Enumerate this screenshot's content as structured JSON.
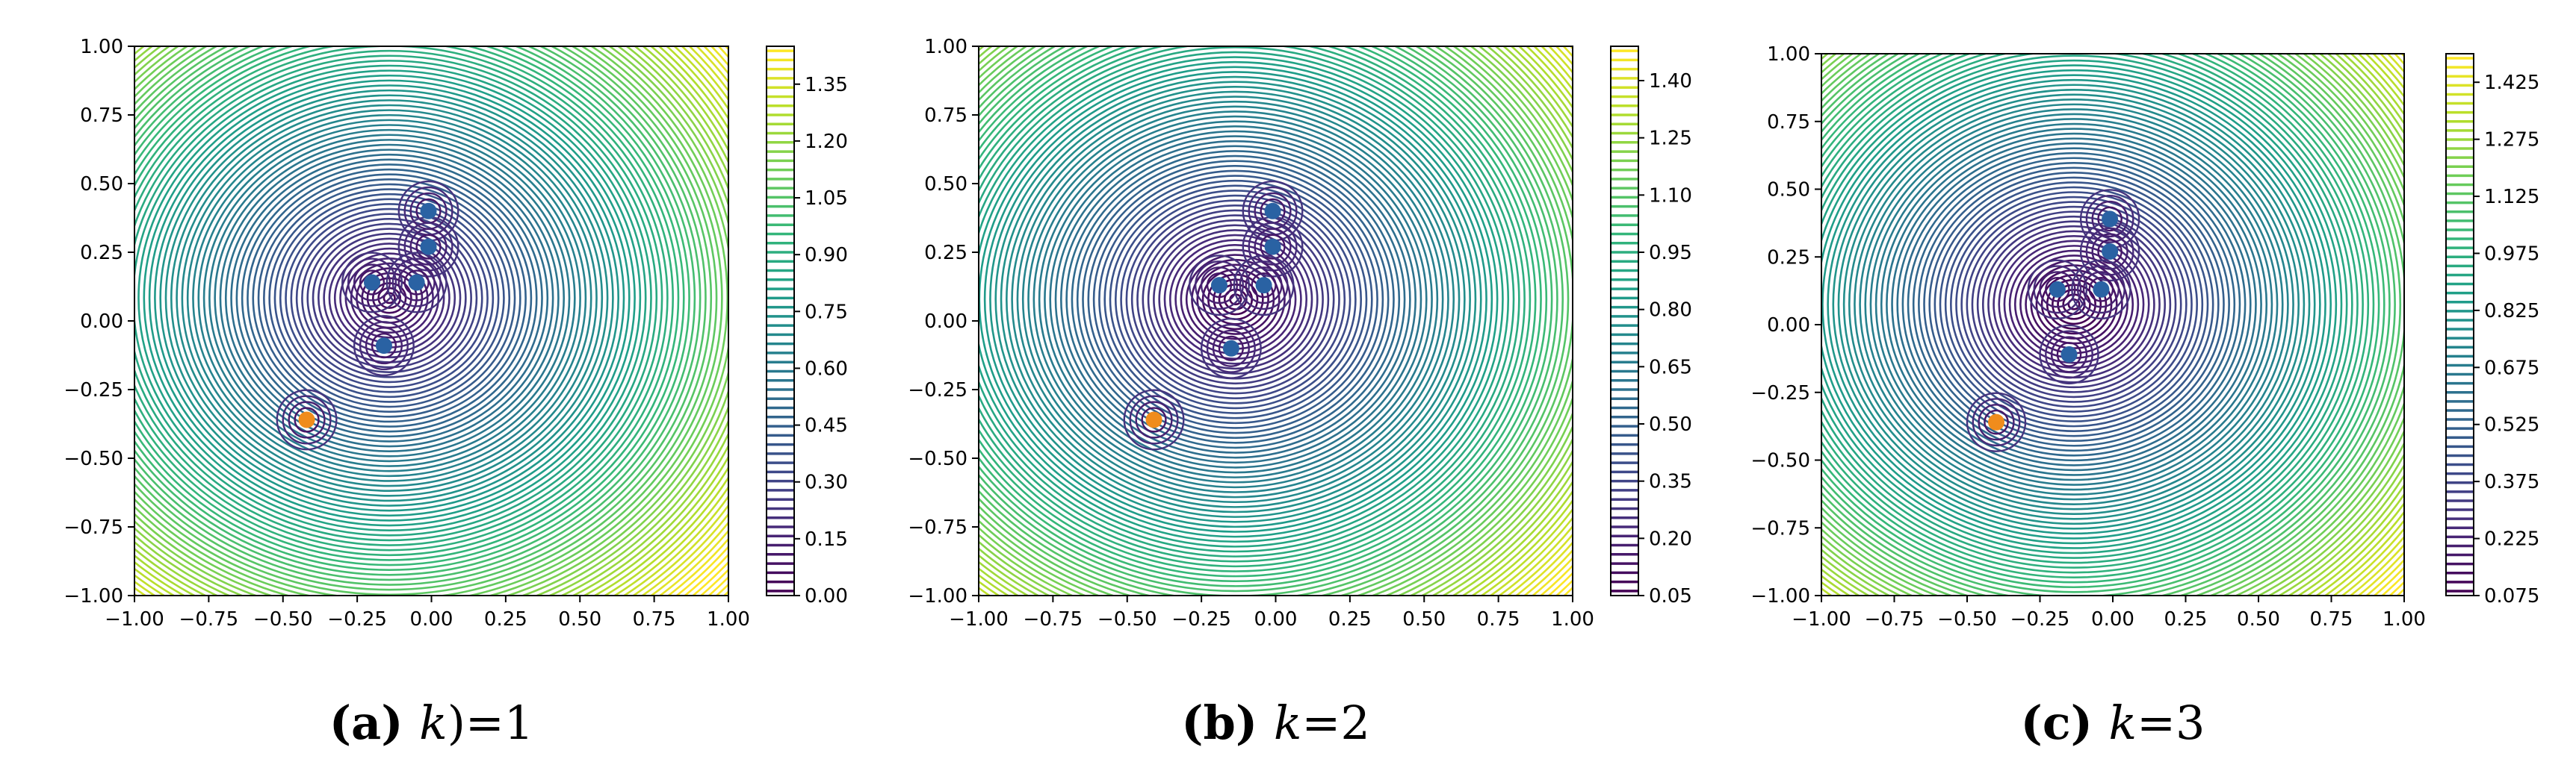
{
  "chart_data": [
    {
      "type": "contour",
      "xlim": [
        -1.0,
        1.0
      ],
      "ylim": [
        -1.0,
        1.0
      ],
      "xticks": [
        "−1.00",
        "−0.75",
        "−0.50",
        "−0.25",
        "0.00",
        "0.25",
        "0.50",
        "0.75",
        "1.00"
      ],
      "yticks": [
        "−1.00",
        "−0.75",
        "−0.50",
        "−0.25",
        "0.00",
        "0.25",
        "0.50",
        "0.75",
        "1.00"
      ],
      "colorbar": {
        "min": 0.0,
        "max": 1.45,
        "ticks": [
          "0.00",
          "0.15",
          "0.30",
          "0.45",
          "0.60",
          "0.75",
          "0.90",
          "1.05",
          "1.20",
          "1.35"
        ]
      },
      "blue_points": [
        [
          -0.01,
          0.4
        ],
        [
          -0.01,
          0.27
        ],
        [
          -0.2,
          0.14
        ],
        [
          -0.05,
          0.14
        ],
        [
          -0.16,
          -0.09
        ]
      ],
      "orange_point": [
        -0.42,
        -0.36
      ],
      "caption": {
        "label": "(a)",
        "math": "k",
        "rest": ")=1"
      }
    },
    {
      "type": "contour",
      "xlim": [
        -1.0,
        1.0
      ],
      "ylim": [
        -1.0,
        1.0
      ],
      "xticks": [
        "−1.00",
        "−0.75",
        "−0.50",
        "−0.25",
        "0.00",
        "0.25",
        "0.50",
        "0.75",
        "1.00"
      ],
      "yticks": [
        "−1.00",
        "−0.75",
        "−0.50",
        "−0.25",
        "0.00",
        "0.25",
        "0.50",
        "0.75",
        "1.00"
      ],
      "colorbar": {
        "min": 0.05,
        "max": 1.49,
        "ticks": [
          "0.05",
          "0.20",
          "0.35",
          "0.50",
          "0.65",
          "0.80",
          "0.95",
          "1.10",
          "1.25",
          "1.40"
        ]
      },
      "blue_points": [
        [
          -0.01,
          0.4
        ],
        [
          -0.01,
          0.27
        ],
        [
          -0.19,
          0.13
        ],
        [
          -0.04,
          0.13
        ],
        [
          -0.15,
          -0.1
        ]
      ],
      "orange_point": [
        -0.41,
        -0.36
      ],
      "caption": {
        "label": "(b)",
        "math": "k",
        "rest": "=2"
      }
    },
    {
      "type": "contour",
      "xlim": [
        -1.0,
        1.0
      ],
      "ylim": [
        -1.0,
        1.0
      ],
      "xticks": [
        "−1.00",
        "−0.75",
        "−0.50",
        "−0.25",
        "0.00",
        "0.25",
        "0.50",
        "0.75",
        "1.00"
      ],
      "yticks": [
        "−1.00",
        "−0.75",
        "−0.50",
        "−0.25",
        "0.00",
        "0.25",
        "0.50",
        "0.75",
        "1.00"
      ],
      "colorbar": {
        "min": 0.075,
        "max": 1.5,
        "ticks": [
          "0.075",
          "0.225",
          "0.375",
          "0.525",
          "0.675",
          "0.825",
          "0.975",
          "1.125",
          "1.275",
          "1.425"
        ]
      },
      "blue_points": [
        [
          -0.01,
          0.39
        ],
        [
          -0.01,
          0.27
        ],
        [
          -0.19,
          0.13
        ],
        [
          -0.04,
          0.13
        ],
        [
          -0.15,
          -0.11
        ]
      ],
      "orange_point": [
        -0.4,
        -0.36
      ],
      "caption": {
        "label": "(c)",
        "math": "k",
        "rest": "=3"
      }
    }
  ]
}
